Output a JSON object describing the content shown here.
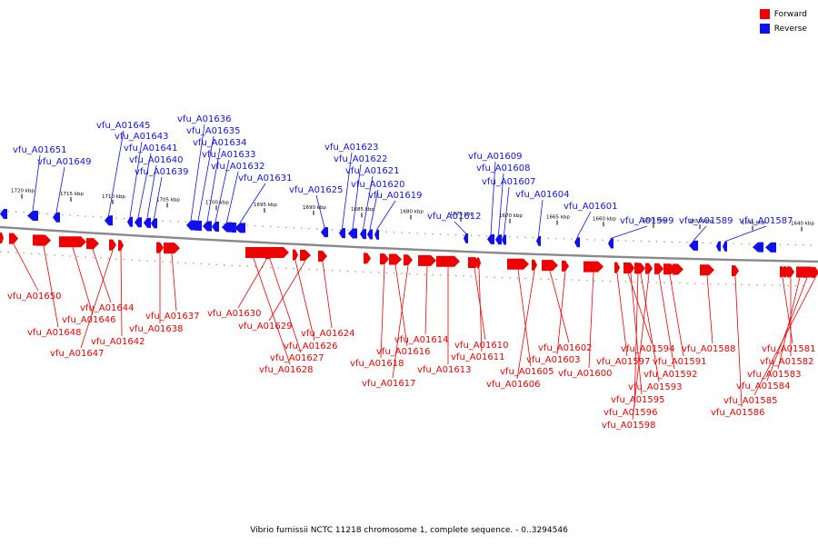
{
  "title": "Vibrio furnissii NCTC 11218 chromosome 1, complete sequence. - 0..3294546",
  "legend": [
    {
      "label": "Forward",
      "color": "#ee0000"
    },
    {
      "label": "Reverse",
      "color": "#1010ee"
    }
  ],
  "colors": {
    "forward": "#ee0000",
    "reverse": "#1010ee",
    "backbone": "#8a8a8a"
  },
  "ticks": [
    "1720 kbp",
    "1715 kbp",
    "1710 kbp",
    "1705 kbp",
    "1700 kbp",
    "1695 kbp",
    "1690 kbp",
    "1685 kbp",
    "1680 kbp",
    "1675 kbp",
    "1670 kbp",
    "1665 kbp",
    "1660 kbp",
    "1655 kbp",
    "1650 kbp",
    "1645 kbp",
    "1640 kbp"
  ],
  "reverse_genes": [
    "vfu_A01651",
    "vfu_A01649",
    "vfu_A01645",
    "vfu_A01643",
    "vfu_A01641",
    "vfu_A01640",
    "vfu_A01639",
    "vfu_A01636",
    "vfu_A01635",
    "vfu_A01634",
    "vfu_A01633",
    "vfu_A01632",
    "vfu_A01631",
    "vfu_A01625",
    "vfu_A01623",
    "vfu_A01622",
    "vfu_A01621",
    "vfu_A01620",
    "vfu_A01619",
    "vfu_A01612",
    "vfu_A01609",
    "vfu_A01608",
    "vfu_A01607",
    "vfu_A01604",
    "vfu_A01601",
    "vfu_A01599",
    "vfu_A01589",
    "vfu_A01587"
  ],
  "forward_genes": [
    "vfu_A01650",
    "vfu_A01644",
    "vfu_A01646",
    "vfu_A01648",
    "vfu_A01647",
    "vfu_A01642",
    "vfu_A01637",
    "vfu_A01638",
    "vfu_A01630",
    "vfu_A01629",
    "vfu_A01624",
    "vfu_A01626",
    "vfu_A01627",
    "vfu_A01628",
    "vfu_A01614",
    "vfu_A01616",
    "vfu_A01618",
    "vfu_A01617",
    "vfu_A01613",
    "vfu_A01610",
    "vfu_A01611",
    "vfu_A01605",
    "vfu_A01606",
    "vfu_A01602",
    "vfu_A01603",
    "vfu_A01600",
    "vfu_A01594",
    "vfu_A01597",
    "vfu_A01591",
    "vfu_A01592",
    "vfu_A01593",
    "vfu_A01595",
    "vfu_A01596",
    "vfu_A01598",
    "vfu_A01588",
    "vfu_A01586",
    "vfu_A01581",
    "vfu_A01582",
    "vfu_A01583",
    "vfu_A01584",
    "vfu_A01585"
  ]
}
